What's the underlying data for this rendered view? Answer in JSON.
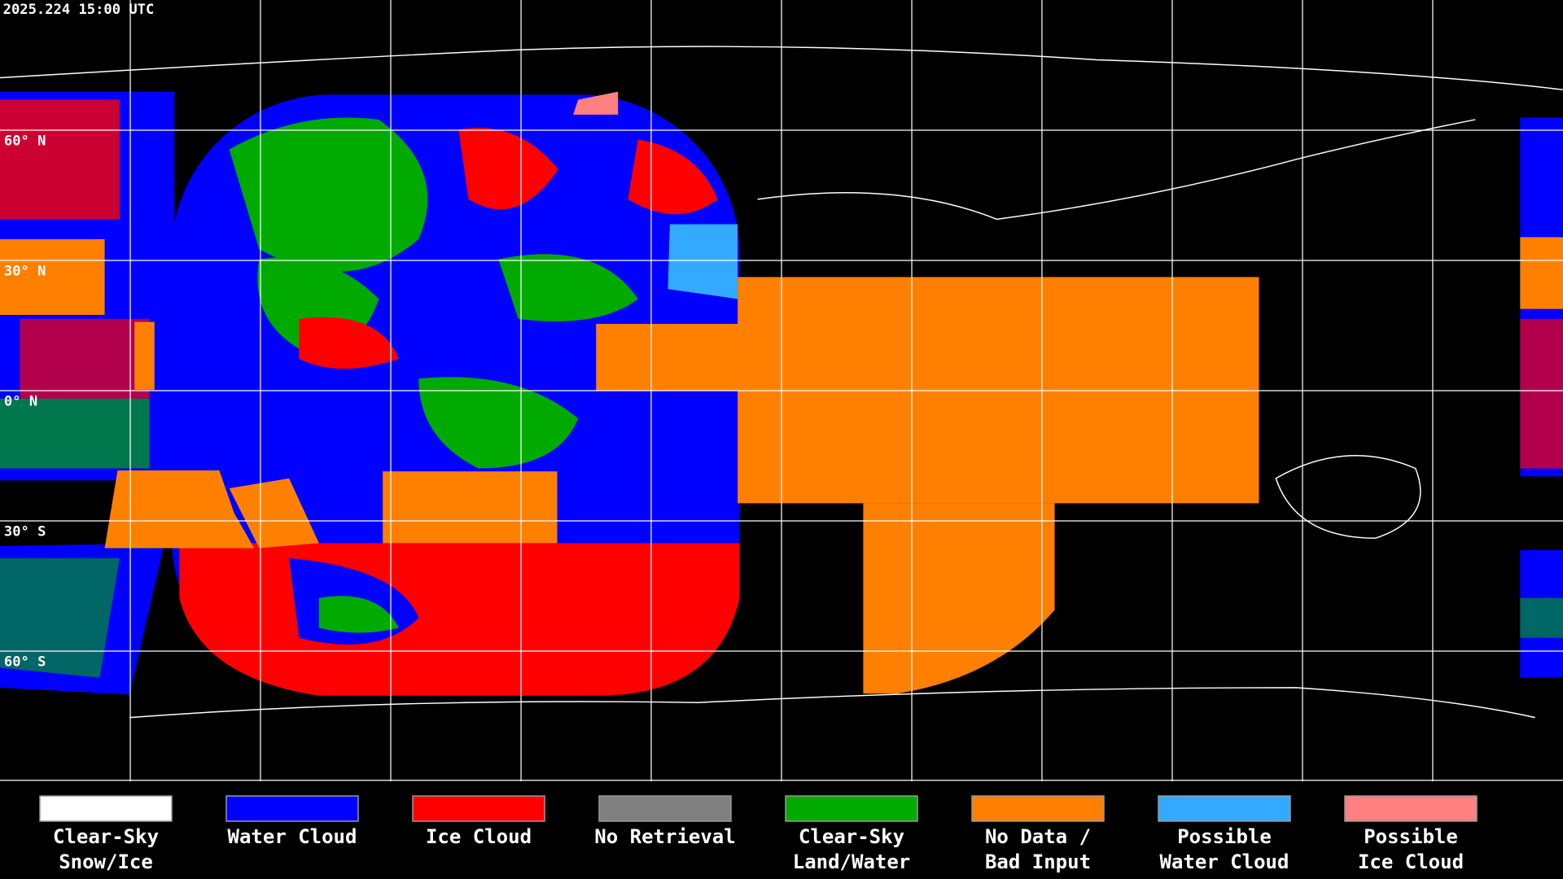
{
  "header": {
    "timestamp": "2025.224 15:00 UTC"
  },
  "map": {
    "latitude_labels": [
      "60° N",
      "30° N",
      "0° N",
      "30° S",
      "60° S"
    ]
  },
  "legend": {
    "items": [
      {
        "label": [
          "Clear-Sky",
          "Snow/Ice"
        ],
        "color": "#ffffff"
      },
      {
        "label": [
          "Water Cloud"
        ],
        "color": "#0000ff"
      },
      {
        "label": [
          "Ice Cloud"
        ],
        "color": "#ff0000"
      },
      {
        "label": [
          "No Retrieval"
        ],
        "color": "#808080"
      },
      {
        "label": [
          "Clear-Sky",
          "Land/Water"
        ],
        "color": "#00aa00"
      },
      {
        "label": [
          "No Data /",
          "Bad Input"
        ],
        "color": "#ff8000"
      },
      {
        "label": [
          "Possible",
          "Water Cloud"
        ],
        "color": "#33aaff"
      },
      {
        "label": [
          "Possible",
          "Ice Cloud"
        ],
        "color": "#ff8080"
      }
    ]
  }
}
